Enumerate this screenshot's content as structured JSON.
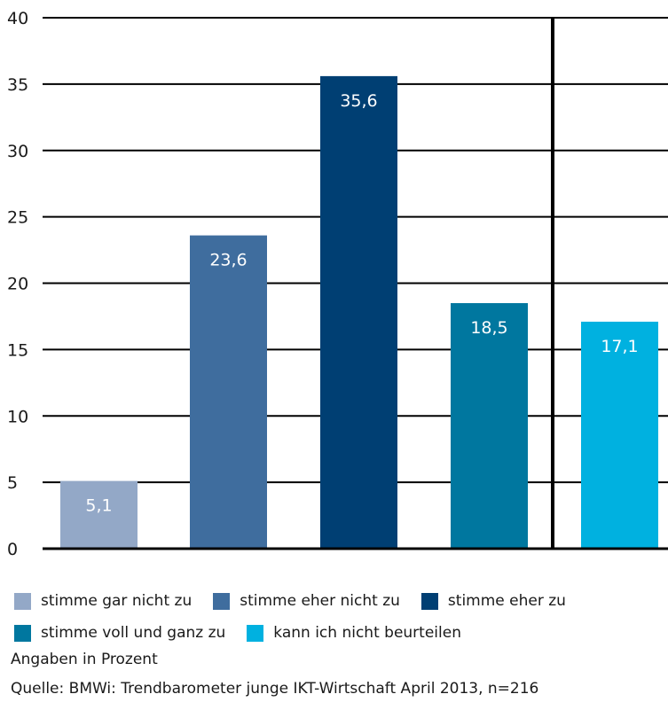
{
  "chart_data": {
    "type": "bar",
    "categories": [
      "stimme gar nicht zu",
      "stimme eher nicht zu",
      "stimme eher zu",
      "stimme voll und ganz zu",
      "kann ich nicht beurteilen"
    ],
    "values": [
      5.1,
      23.6,
      35.6,
      18.5,
      17.1
    ],
    "value_labels": [
      "5,1",
      "23,6",
      "35,6",
      "18,5",
      "17,1"
    ],
    "colors": [
      "#93a8c7",
      "#3f6d9e",
      "#003f73",
      "#00779f",
      "#00b1e0"
    ],
    "ylim": [
      0,
      40
    ],
    "yticks": [
      0,
      5,
      10,
      15,
      20,
      25,
      30,
      35,
      40
    ],
    "grid": true,
    "legend": "bottom"
  },
  "notes": {
    "unit": "Angaben in Prozent",
    "source": "Quelle: BMWi: Trendbarometer junge IKT-Wirtschaft April 2013, n=216"
  }
}
